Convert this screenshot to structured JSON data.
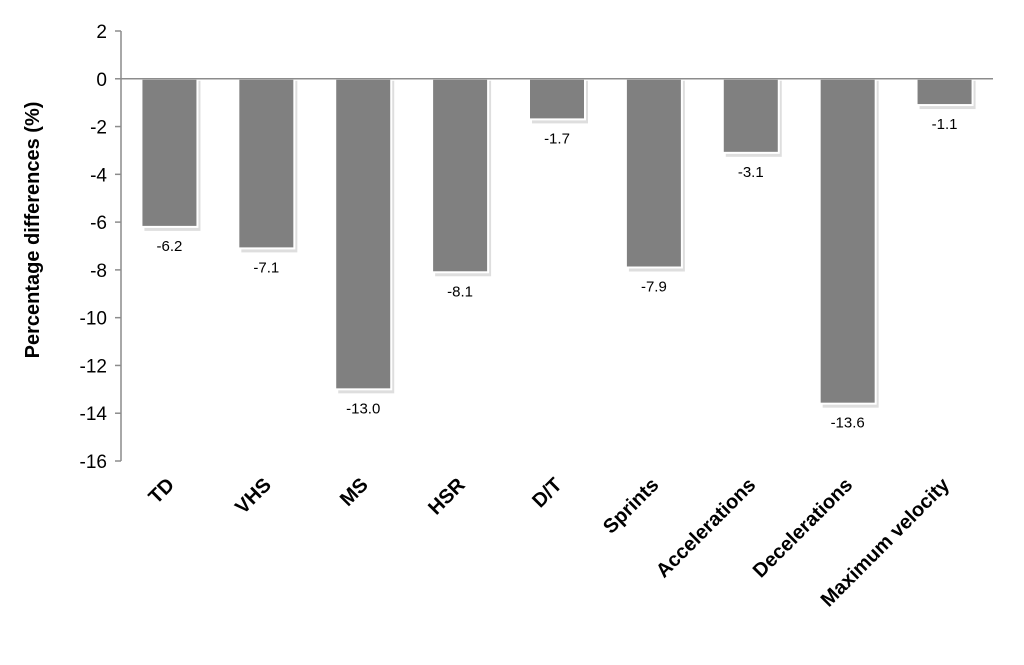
{
  "chart_data": {
    "type": "bar",
    "categories": [
      "TD",
      "VHS",
      "MS",
      "HSR",
      "D/T",
      "Sprints",
      "Accelerations",
      "Decelerations",
      "Maximum velocity"
    ],
    "values": [
      -6.2,
      -7.1,
      -13.0,
      -8.1,
      -1.7,
      -7.9,
      -3.1,
      -13.6,
      -1.1
    ],
    "value_labels": [
      "-6.2",
      "-7.1",
      "-13.0",
      "-8.1",
      "-1.7",
      "-7.9",
      "-3.1",
      "-13.6",
      "-1.1"
    ],
    "title": "",
    "xlabel": "",
    "ylabel": "Percentage differences (%)",
    "ylim": [
      -16,
      2
    ],
    "yticks": [
      2,
      0,
      -2,
      -4,
      -6,
      -8,
      -10,
      -12,
      -14,
      -16
    ],
    "ytick_labels": [
      "2",
      "0",
      "-2",
      "-4",
      "-6",
      "-8",
      "-10",
      "-12",
      "-14",
      "-16"
    ],
    "grid": false,
    "legend": "none",
    "bar_color": "#808080",
    "bar_edge_color": "#ffffff"
  }
}
